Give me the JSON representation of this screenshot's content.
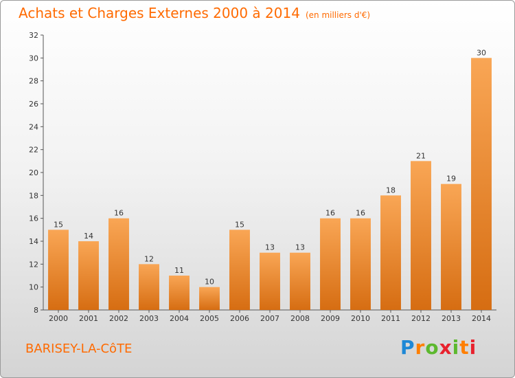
{
  "title": "Achats et Charges Externes 2000 à 2014",
  "unit": "(en milliers d'€)",
  "commune": "BARISEY-LA-CôTE",
  "logo_text": "Proxiti",
  "colors": {
    "accent": "#ff6a00",
    "bar_light": "#f9a655",
    "bar_dark": "#d66d12"
  },
  "chart_data": {
    "type": "bar",
    "title": "Achats et Charges Externes 2000 à 2014",
    "subtitle": "(en milliers d'€)",
    "categories": [
      "2000",
      "2001",
      "2002",
      "2003",
      "2004",
      "2005",
      "2006",
      "2007",
      "2008",
      "2009",
      "2010",
      "2011",
      "2012",
      "2013",
      "2014"
    ],
    "values": [
      15,
      14,
      16,
      12,
      11,
      10,
      15,
      13,
      13,
      16,
      16,
      18,
      21,
      19,
      30
    ],
    "ylim": [
      8,
      32
    ],
    "yticks": [
      8,
      10,
      12,
      14,
      16,
      18,
      20,
      22,
      24,
      26,
      28,
      30,
      32
    ],
    "grid": false,
    "legend": "none"
  }
}
